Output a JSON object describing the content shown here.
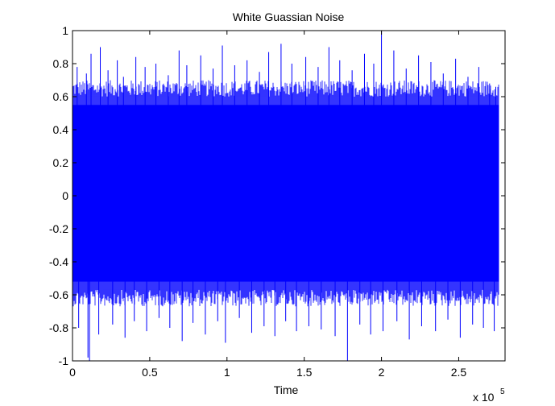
{
  "chart_data": {
    "type": "line",
    "title": "White Guassian Noise",
    "xlabel": "Time",
    "ylabel": "",
    "x_exponent_label": "x 10",
    "x_exponent": "5",
    "xlim": [
      0,
      280000
    ],
    "ylim": [
      -1,
      1
    ],
    "x_data_max": 276000,
    "xticks": [
      0,
      50000,
      100000,
      150000,
      200000,
      250000
    ],
    "xtick_labels": [
      "0",
      "0.5",
      "1",
      "1.5",
      "2",
      "2.5"
    ],
    "yticks": [
      -1,
      -0.8,
      -0.6,
      -0.4,
      -0.2,
      0,
      0.2,
      0.4,
      0.6,
      0.8,
      1
    ],
    "ytick_labels": [
      "-1",
      "-0.8",
      "-0.6",
      "-0.4",
      "-0.2",
      "0",
      "0.2",
      "0.4",
      "0.6",
      "0.8",
      "1"
    ],
    "grid": false,
    "series": [
      {
        "color": "#0000ff",
        "envelope_upper": 0.55,
        "envelope_lower": -0.52,
        "peaks_upper": [
          [
            3000,
            0.78
          ],
          [
            9000,
            0.74
          ],
          [
            12000,
            0.86
          ],
          [
            18000,
            0.9
          ],
          [
            23000,
            0.76
          ],
          [
            29000,
            0.82
          ],
          [
            33000,
            0.72
          ],
          [
            41000,
            0.84
          ],
          [
            47000,
            0.78
          ],
          [
            54000,
            0.8
          ],
          [
            62000,
            0.73
          ],
          [
            69000,
            0.88
          ],
          [
            74000,
            0.79
          ],
          [
            83000,
            0.85
          ],
          [
            91000,
            0.77
          ],
          [
            97000,
            0.91
          ],
          [
            105000,
            0.79
          ],
          [
            113000,
            0.82
          ],
          [
            121000,
            0.75
          ],
          [
            127000,
            0.87
          ],
          [
            135000,
            0.92
          ],
          [
            142000,
            0.8
          ],
          [
            151000,
            0.84
          ],
          [
            159000,
            0.78
          ],
          [
            166000,
            0.9
          ],
          [
            173000,
            0.82
          ],
          [
            181000,
            0.76
          ],
          [
            189000,
            0.86
          ],
          [
            195000,
            0.8
          ],
          [
            200000,
            1.0
          ],
          [
            208000,
            0.88
          ],
          [
            216000,
            0.77
          ],
          [
            224000,
            0.85
          ],
          [
            232000,
            0.81
          ],
          [
            240000,
            0.74
          ],
          [
            248000,
            0.83
          ],
          [
            256000,
            0.72
          ],
          [
            263000,
            0.78
          ],
          [
            270000,
            0.68
          ],
          [
            274000,
            0.66
          ]
        ],
        "peaks_lower": [
          [
            4000,
            -0.8
          ],
          [
            10000,
            -0.98
          ],
          [
            11000,
            -1.0
          ],
          [
            17000,
            -0.84
          ],
          [
            26000,
            -0.78
          ],
          [
            34000,
            -0.86
          ],
          [
            40000,
            -0.76
          ],
          [
            48000,
            -0.82
          ],
          [
            56000,
            -0.74
          ],
          [
            63000,
            -0.8
          ],
          [
            71000,
            -0.88
          ],
          [
            78000,
            -0.77
          ],
          [
            86000,
            -0.84
          ],
          [
            94000,
            -0.76
          ],
          [
            99000,
            -0.89
          ],
          [
            108000,
            -0.74
          ],
          [
            116000,
            -0.83
          ],
          [
            124000,
            -0.79
          ],
          [
            131000,
            -0.85
          ],
          [
            138000,
            -0.76
          ],
          [
            145000,
            -0.82
          ],
          [
            153000,
            -0.79
          ],
          [
            161000,
            -0.81
          ],
          [
            170000,
            -0.85
          ],
          [
            178000,
            -1.0
          ],
          [
            186000,
            -0.78
          ],
          [
            193000,
            -0.84
          ],
          [
            201000,
            -0.82
          ],
          [
            210000,
            -0.76
          ],
          [
            218000,
            -0.87
          ],
          [
            226000,
            -0.79
          ],
          [
            235000,
            -0.82
          ],
          [
            243000,
            -0.75
          ],
          [
            251000,
            -0.86
          ],
          [
            259000,
            -0.78
          ],
          [
            266000,
            -0.8
          ],
          [
            273000,
            -0.82
          ]
        ]
      }
    ]
  }
}
